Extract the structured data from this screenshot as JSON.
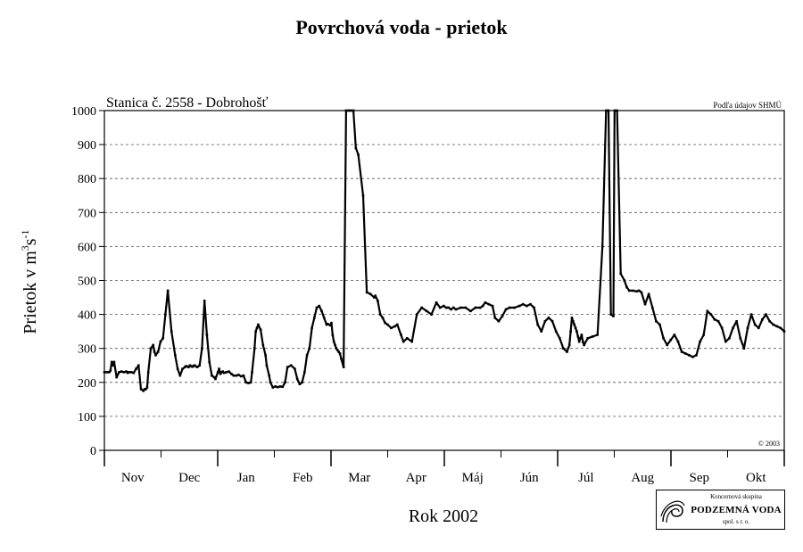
{
  "title": "Povrchová voda - prietok",
  "chart_data": {
    "type": "line",
    "station_label": "Stanica č. 2558 - Dobrohošť",
    "source_label": "Podľa údajov SHMÚ",
    "copyright": "© 2003",
    "ylabel_main": "Prietok v m",
    "ylabel_sup1": "3",
    "ylabel_mid": "s",
    "ylabel_sup2": "-1",
    "xlabel": "Rok 2002",
    "ylim": [
      0,
      1000
    ],
    "yticks": [
      0,
      100,
      200,
      300,
      400,
      500,
      600,
      700,
      800,
      900,
      1000
    ],
    "grid": "horizontal dashed",
    "months": [
      "Nov",
      "Dec",
      "Jan",
      "Feb",
      "Mar",
      "Apr",
      "Máj",
      "Jún",
      "Júl",
      "Aug",
      "Sep",
      "Okt"
    ],
    "series": [
      {
        "x": [
          0,
          2,
          4,
          5,
          6,
          7,
          8,
          10,
          12,
          14,
          16,
          18,
          19,
          20,
          22,
          24,
          26,
          28,
          30,
          32,
          33,
          34,
          35,
          36,
          38,
          40,
          41,
          42,
          44,
          46,
          48,
          50,
          52,
          55,
          58,
          60,
          62,
          64,
          66,
          67,
          69,
          70,
          71,
          72,
          73,
          74,
          76,
          78,
          80,
          82,
          84,
          86,
          88,
          90,
          91,
          93,
          94,
          95,
          96,
          97,
          98,
          100,
          102,
          104,
          106,
          108,
          110,
          112,
          114,
          116,
          118,
          120,
          121,
          123,
          124,
          125,
          126,
          128,
          130,
          132,
          133,
          135,
          136,
          138,
          140,
          142,
          144,
          146,
          148,
          150,
          153,
          156,
          158,
          160,
          162,
          164,
          166,
          168,
          170,
          172,
          174,
          176,
          178,
          180,
          182,
          183,
          185,
          186,
          187,
          188,
          189,
          190,
          191,
          192,
          193,
          194,
          196,
          198,
          200,
          202,
          204,
          206,
          208,
          212,
          215,
          218,
          221,
          222,
          224,
          226,
          228,
          230,
          232,
          235,
          238,
          240,
          243,
          245,
          248,
          252,
          256,
          260,
          264,
          268,
          272,
          275,
          278,
          280,
          282,
          284,
          286,
          288,
          292,
          296,
          300,
          304,
          308,
          310,
          312,
          315,
          318,
          320,
          323,
          326,
          329,
          332,
          336,
          340,
          343,
          346,
          349,
          352,
          355,
          358,
          361,
          364,
          367,
          370,
          373,
          376,
          379,
          381,
          382,
          383,
          384,
          385,
          386,
          387,
          388,
          389,
          390,
          391,
          392,
          393,
          396,
          400,
          404,
          408,
          411,
          413,
          415,
          417,
          418,
          420,
          423,
          426,
          428,
          430,
          433,
          436,
          438,
          440,
          443,
          446,
          449,
          452,
          455,
          458,
          461,
          464,
          467,
          470,
          473,
          476,
          479,
          482,
          485,
          488,
          491,
          494,
          497,
          500,
          503,
          506,
          509,
          512,
          515,
          518,
          521,
          524,
          527,
          530,
          533,
          536,
          539,
          542,
          545,
          548,
          551,
          554,
          557
        ],
        "y": [
          230,
          230,
          230,
          235,
          260,
          250,
          260,
          215,
          230,
          232,
          230,
          232,
          228,
          230,
          230,
          228,
          240,
          250,
          180,
          175,
          180,
          180,
          185,
          230,
          300,
          310,
          290,
          280,
          290,
          320,
          330,
          400,
          470,
          350,
          280,
          240,
          220,
          240,
          245,
          248,
          245,
          250,
          248,
          246,
          248,
          250,
          245,
          250,
          300,
          440,
          340,
          260,
          220,
          215,
          210,
          230,
          240,
          225,
          230,
          232,
          228,
          230,
          232,
          225,
          220,
          220,
          222,
          218,
          220,
          200,
          198,
          200,
          230,
          300,
          350,
          360,
          370,
          355,
          310,
          280,
          250,
          220,
          200,
          185,
          188,
          186,
          188,
          187,
          200,
          245,
          250,
          240,
          210,
          195,
          200,
          230,
          280,
          300,
          360,
          390,
          420,
          425,
          410,
          390,
          370,
          372,
          368,
          375,
          340,
          320,
          310,
          300,
          295,
          290,
          285,
          270,
          245,
          1000,
          1000,
          1000,
          1000,
          890,
          870,
          750,
          465,
          460,
          450,
          455,
          440,
          400,
          390,
          375,
          370,
          360,
          365,
          370,
          340,
          320,
          330,
          320,
          400,
          420,
          410,
          400,
          435,
          420,
          425,
          420,
          420,
          415,
          420,
          415,
          420,
          420,
          410,
          420,
          420,
          425,
          435,
          430,
          425,
          390,
          380,
          395,
          415,
          420,
          420,
          425,
          430,
          425,
          430,
          420,
          370,
          350,
          380,
          390,
          380,
          350,
          330,
          300,
          290,
          310,
          350,
          390,
          380,
          370,
          360,
          350,
          335,
          320,
          330,
          340,
          320,
          310,
          330,
          335,
          340,
          600,
          1000,
          1000,
          400,
          395,
          1000,
          1000,
          520,
          500,
          480,
          470,
          470,
          468,
          470,
          465,
          430,
          460,
          420,
          380,
          370,
          330,
          310,
          325,
          340,
          320,
          290,
          285,
          280,
          275,
          280,
          320,
          340,
          410,
          400,
          385,
          380,
          360,
          320,
          330,
          360,
          380,
          330,
          300,
          360,
          400,
          370,
          360,
          385,
          400,
          380,
          370,
          365,
          360,
          350
        ]
      }
    ]
  },
  "logo": {
    "top": "Koncernová skupina",
    "main": "PODZEMNÁ VODA",
    "bottom": "spol. s r. o."
  }
}
